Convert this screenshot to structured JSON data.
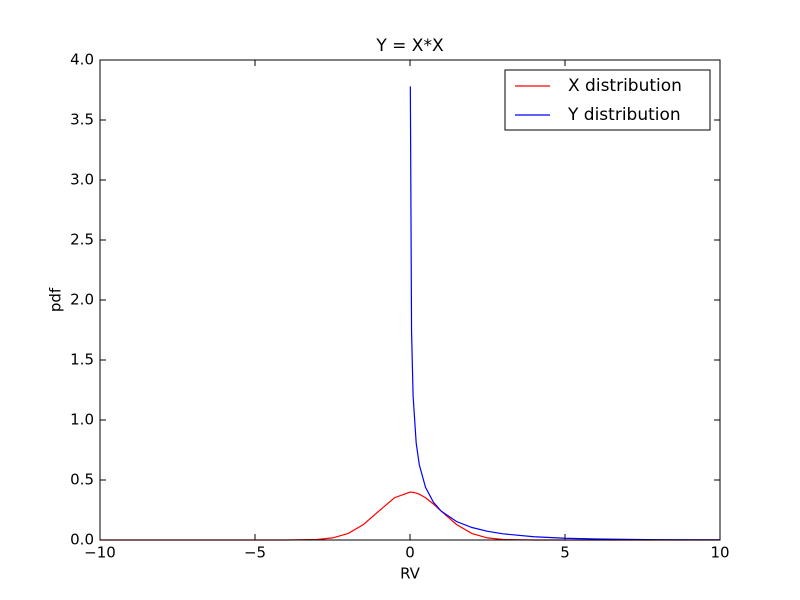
{
  "chart_data": {
    "type": "line",
    "title": "Y = X*X",
    "x_label": "RV",
    "y_label": "pdf",
    "x": [
      -10,
      -8,
      -6,
      -4,
      -3,
      -2.5,
      -2,
      -1.5,
      -1,
      -0.5,
      0,
      0.011,
      0.05,
      0.1,
      0.2,
      0.3,
      0.5,
      0.75,
      1,
      1.5,
      2,
      2.5,
      3,
      4,
      5,
      6,
      8,
      10
    ],
    "series": [
      {
        "name": "X distribution",
        "color": "#ff0000",
        "values": [
          0,
          0,
          0,
          0.0001,
          0.0044,
          0.0175,
          0.054,
          0.1295,
          0.242,
          0.3521,
          0.3989,
          0.3989,
          0.3984,
          0.397,
          0.391,
          0.3814,
          0.3521,
          0.3011,
          0.242,
          0.1295,
          0.054,
          0.0175,
          0.0044,
          0.0001,
          0,
          0,
          0,
          0
        ]
      },
      {
        "name": "Y distribution",
        "color": "#0000ff",
        "values": [
          null,
          null,
          null,
          null,
          null,
          null,
          null,
          null,
          null,
          null,
          null,
          3.78,
          1.74,
          1.2,
          0.807,
          0.627,
          0.439,
          0.317,
          0.242,
          0.154,
          0.104,
          0.0723,
          0.0514,
          0.027,
          0.0146,
          0.0081,
          0.0026,
          0.0008
        ]
      }
    ],
    "xlim": [
      -10,
      10
    ],
    "xticks": [
      {
        "value": -10,
        "label": "−10"
      },
      {
        "value": -5,
        "label": "−5"
      },
      0,
      5,
      10
    ],
    "ylim": [
      0,
      4
    ],
    "yticks": [
      {
        "value": 0,
        "label": "0.0"
      },
      {
        "value": 0.5,
        "label": "0.5"
      },
      {
        "value": 1,
        "label": "1.0"
      },
      {
        "value": 1.5,
        "label": "1.5"
      },
      {
        "value": 2,
        "label": "2.0"
      },
      {
        "value": 2.5,
        "label": "2.5"
      },
      {
        "value": 3,
        "label": "3.0"
      },
      {
        "value": 3.5,
        "label": "3.5"
      },
      {
        "value": 4,
        "label": "4.0"
      }
    ],
    "grid": false,
    "legend": "upper-right"
  }
}
